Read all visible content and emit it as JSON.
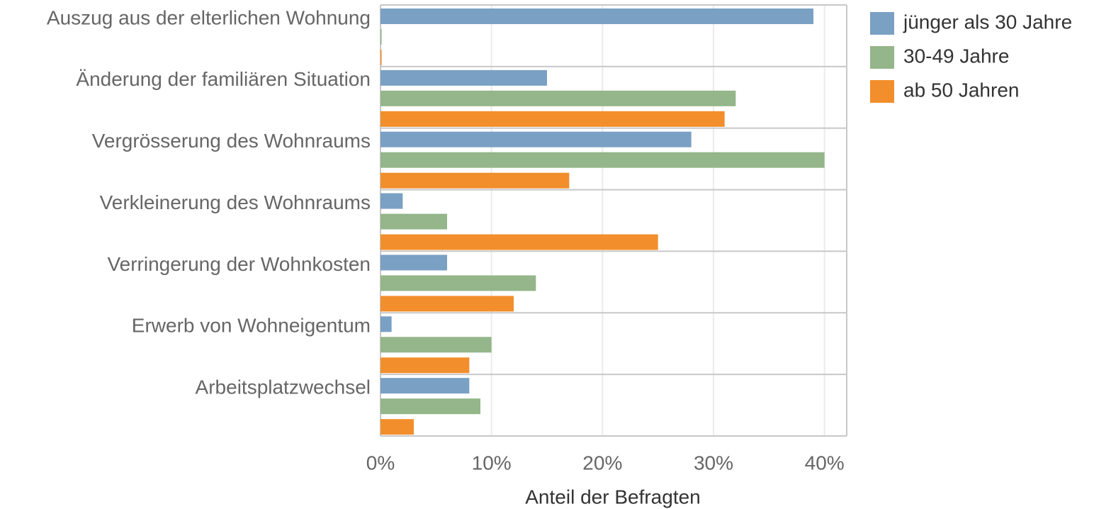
{
  "chart_data": {
    "type": "bar",
    "orientation": "horizontal",
    "xlabel": "Anteil der Befragten",
    "categories": [
      "Auszug aus der elterlichen Wohnung",
      "Änderung der familiären Situation",
      "Vergrösserung des Wohnraums",
      "Verkleinerung des Wohnraums",
      "Verringerung der Wohnkosten",
      "Erwerb von Wohneigentum",
      "Arbeitsplatzwechsel"
    ],
    "series": [
      {
        "name": "jünger als 30 Jahre",
        "color": "#7aa0c4",
        "values": [
          39,
          15,
          28,
          2,
          6,
          1,
          8
        ]
      },
      {
        "name": "30-49 Jahre",
        "color": "#94b68a",
        "values": [
          0.1,
          32,
          40,
          6,
          14,
          10,
          9
        ]
      },
      {
        "name": "ab 50 Jahren",
        "color": "#f28e2b",
        "values": [
          0.1,
          31,
          17,
          25,
          12,
          8,
          3
        ]
      }
    ],
    "xlim": [
      0,
      42
    ],
    "xticks": [
      {
        "value": 0,
        "label": "0%"
      },
      {
        "value": 10,
        "label": "10%"
      },
      {
        "value": 20,
        "label": "20%"
      },
      {
        "value": 30,
        "label": "30%"
      },
      {
        "value": 40,
        "label": "40%"
      }
    ],
    "grid": true,
    "legend": "top-right"
  }
}
